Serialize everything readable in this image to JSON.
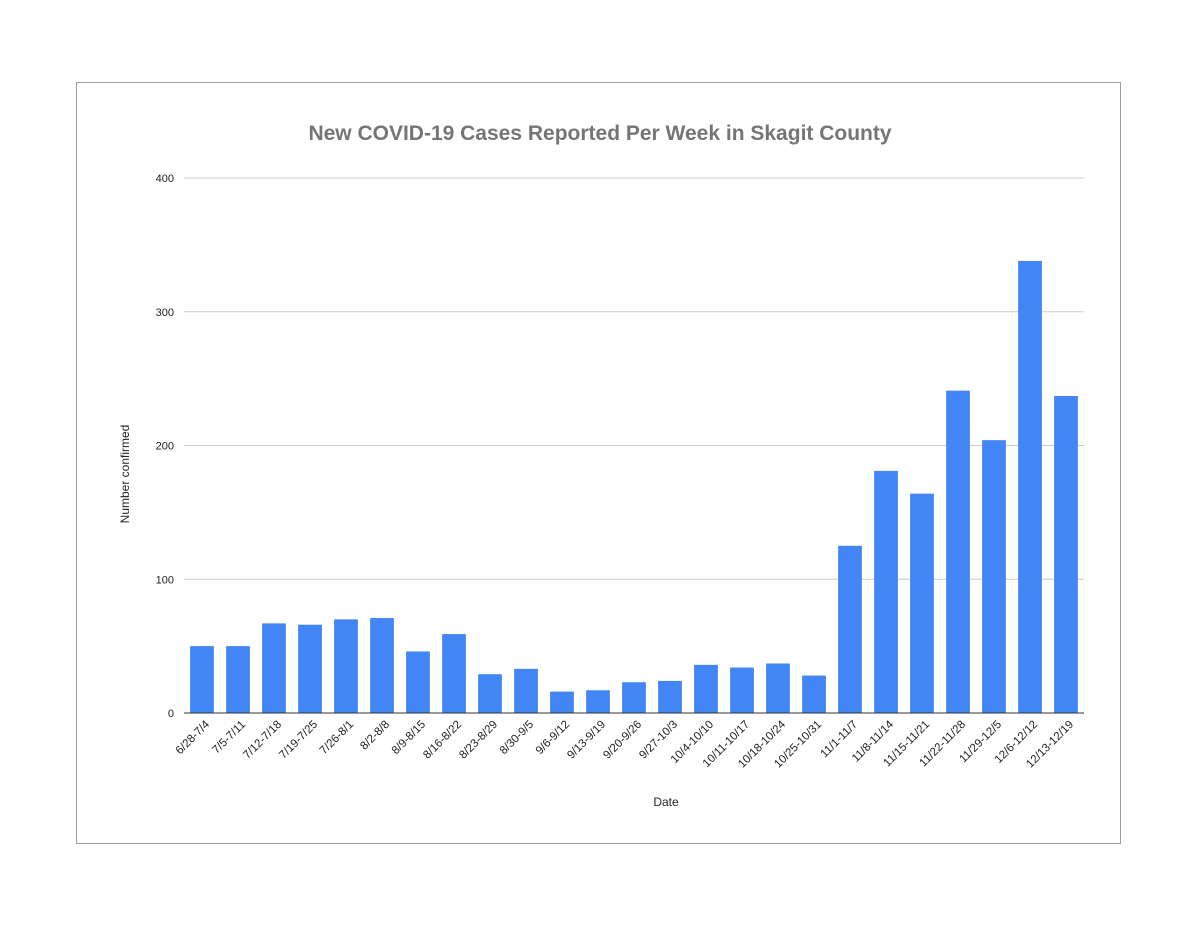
{
  "chart_data": {
    "type": "bar",
    "title": "New COVID-19 Cases Reported Per Week in Skagit County",
    "xlabel": "Date",
    "ylabel": "Number confirmed",
    "ylim": [
      0,
      400
    ],
    "yticks": [
      "0",
      "100",
      "200",
      "300",
      "400"
    ],
    "grid": true,
    "legend": "none",
    "bar_color": "#4285f4",
    "categories": [
      "6/28-7/4",
      "7/5-7/11",
      "7/12-7/18",
      "7/19-7/25",
      "7/26-8/1",
      "8/2-8/8",
      "8/9-8/15",
      "8/16-8/22",
      "8/23-8/29",
      "8/30-9/5",
      "9/6-9/12",
      "9/13-9/19",
      "9/20-9/26",
      "9/27-10/3",
      "10/4-10/10",
      "10/11-10/17",
      "10/18-10/24",
      "10/25-10/31",
      "11/1-11/7",
      "11/8-11/14",
      "11/15-11/21",
      "11/22-11/28",
      "11/29-12/5",
      "12/6-12/12",
      "12/13-12/19"
    ],
    "values": [
      50,
      50,
      67,
      66,
      70,
      71,
      46,
      59,
      29,
      33,
      16,
      17,
      23,
      24,
      36,
      34,
      37,
      28,
      125,
      181,
      164,
      241,
      204,
      338,
      237
    ]
  }
}
